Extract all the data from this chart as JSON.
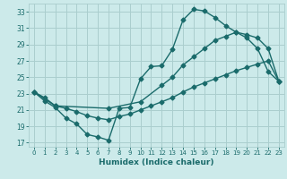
{
  "xlabel": "Humidex (Indice chaleur)",
  "bg_color": "#cceaea",
  "grid_color": "#aacece",
  "line_color": "#1a6b6b",
  "marker": "D",
  "markersize": 2.5,
  "linewidth": 1.0,
  "xlim": [
    -0.5,
    23.5
  ],
  "ylim": [
    16.5,
    34.0
  ],
  "yticks": [
    17,
    19,
    21,
    23,
    25,
    27,
    29,
    31,
    33
  ],
  "xticks": [
    0,
    1,
    2,
    3,
    4,
    5,
    6,
    7,
    8,
    9,
    10,
    11,
    12,
    13,
    14,
    15,
    16,
    17,
    18,
    19,
    20,
    21,
    22,
    23
  ],
  "series": [
    {
      "x": [
        0,
        1,
        2,
        3,
        4,
        5,
        6,
        7,
        8,
        9,
        10,
        11,
        12,
        13,
        14,
        15,
        16,
        17,
        18,
        19,
        20,
        21,
        22,
        23
      ],
      "y": [
        23.2,
        22.1,
        21.3,
        20.0,
        19.3,
        18.0,
        17.7,
        17.3,
        21.2,
        21.3,
        24.8,
        26.3,
        26.4,
        28.4,
        32.0,
        33.3,
        33.1,
        32.3,
        31.3,
        30.5,
        29.8,
        28.5,
        25.7,
        24.5
      ]
    },
    {
      "x": [
        0,
        2,
        7,
        10,
        12,
        13,
        14,
        15,
        16,
        17,
        18,
        19,
        20,
        21,
        22,
        23
      ],
      "y": [
        23.2,
        21.5,
        21.2,
        22.0,
        24.0,
        25.0,
        26.5,
        27.5,
        28.5,
        29.5,
        30.0,
        30.5,
        30.2,
        29.8,
        28.5,
        24.5
      ]
    },
    {
      "x": [
        0,
        1,
        2,
        3,
        4,
        5,
        6,
        7,
        8,
        9,
        10,
        11,
        12,
        13,
        14,
        15,
        16,
        17,
        18,
        19,
        20,
        21,
        22,
        23
      ],
      "y": [
        23.2,
        22.5,
        21.5,
        21.2,
        20.8,
        20.3,
        20.0,
        19.8,
        20.2,
        20.5,
        21.0,
        21.5,
        22.0,
        22.5,
        23.2,
        23.8,
        24.3,
        24.8,
        25.3,
        25.8,
        26.2,
        26.6,
        27.0,
        24.5
      ]
    }
  ]
}
